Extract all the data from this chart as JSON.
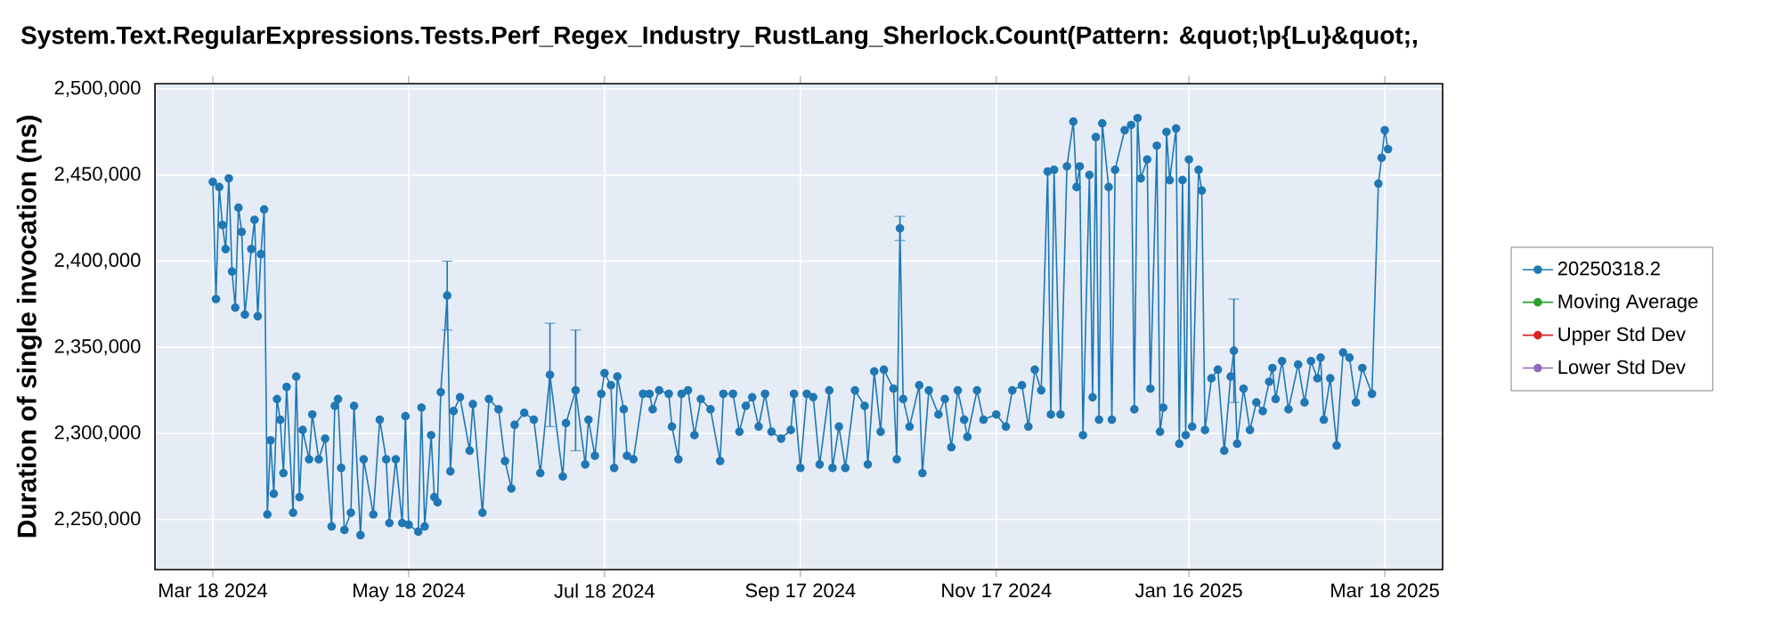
{
  "chart_data": {
    "type": "line",
    "title": "System.Text.RegularExpressions.Tests.Perf_Regex_Industry_RustLang_Sherlock.Count(Pattern: &quot;\\p{Lu}&quot;,",
    "ylabel": "Duration of single invocation (ns)",
    "xlim": [
      "2024-02-29",
      "2025-04-05"
    ],
    "ylim": [
      2221000,
      2503000
    ],
    "xticks": [
      {
        "value": "2024-03-18",
        "label": "Mar 18 2024"
      },
      {
        "value": "2024-05-18",
        "label": "May 18 2024"
      },
      {
        "value": "2024-07-18",
        "label": "Jul 18 2024"
      },
      {
        "value": "2024-09-17",
        "label": "Sep 17 2024"
      },
      {
        "value": "2024-11-17",
        "label": "Nov 17 2024"
      },
      {
        "value": "2025-01-16",
        "label": "Jan 16 2025"
      },
      {
        "value": "2025-03-18",
        "label": "Mar 18 2025"
      }
    ],
    "yticks": [
      {
        "value": 2250000,
        "label": "2,250,000"
      },
      {
        "value": 2300000,
        "label": "2,300,000"
      },
      {
        "value": 2350000,
        "label": "2,350,000"
      },
      {
        "value": 2400000,
        "label": "2,400,000"
      },
      {
        "value": 2450000,
        "label": "2,450,000"
      },
      {
        "value": 2500000,
        "label": "2,500,000"
      }
    ],
    "grid": true,
    "legend": "right",
    "marker": "circle",
    "series": [
      {
        "name": "20250318.2",
        "color": "#1f77b4",
        "x": [
          "2024-03-18",
          "2024-03-19",
          "2024-03-20",
          "2024-03-21",
          "2024-03-22",
          "2024-03-23",
          "2024-03-24",
          "2024-03-25",
          "2024-03-26",
          "2024-03-27",
          "2024-03-28",
          "2024-03-30",
          "2024-03-31",
          "2024-04-01",
          "2024-04-02",
          "2024-04-03",
          "2024-04-04",
          "2024-04-05",
          "2024-04-06",
          "2024-04-07",
          "2024-04-08",
          "2024-04-09",
          "2024-04-10",
          "2024-04-12",
          "2024-04-13",
          "2024-04-14",
          "2024-04-15",
          "2024-04-17",
          "2024-04-18",
          "2024-04-20",
          "2024-04-22",
          "2024-04-24",
          "2024-04-25",
          "2024-04-26",
          "2024-04-27",
          "2024-04-28",
          "2024-04-30",
          "2024-05-01",
          "2024-05-03",
          "2024-05-04",
          "2024-05-07",
          "2024-05-09",
          "2024-05-11",
          "2024-05-12",
          "2024-05-14",
          "2024-05-16",
          "2024-05-17",
          "2024-05-18",
          "2024-05-21",
          "2024-05-22",
          "2024-05-23",
          "2024-05-25",
          "2024-05-26",
          "2024-05-27",
          "2024-05-28",
          "2024-05-30",
          "2024-05-31",
          "2024-06-01",
          "2024-06-03",
          "2024-06-06",
          "2024-06-07",
          "2024-06-10",
          "2024-06-12",
          "2024-06-15",
          "2024-06-17",
          "2024-06-19",
          "2024-06-20",
          "2024-06-23",
          "2024-06-26",
          "2024-06-28",
          "2024-07-01",
          "2024-07-05",
          "2024-07-06",
          "2024-07-09",
          "2024-07-12",
          "2024-07-13",
          "2024-07-15",
          "2024-07-17",
          "2024-07-18",
          "2024-07-20",
          "2024-07-21",
          "2024-07-22",
          "2024-07-24",
          "2024-07-25",
          "2024-07-27",
          "2024-07-30",
          "2024-08-01",
          "2024-08-02",
          "2024-08-04",
          "2024-08-07",
          "2024-08-08",
          "2024-08-10",
          "2024-08-11",
          "2024-08-13",
          "2024-08-15",
          "2024-08-17",
          "2024-08-20",
          "2024-08-23",
          "2024-08-24",
          "2024-08-27",
          "2024-08-29",
          "2024-08-31",
          "2024-09-02",
          "2024-09-04",
          "2024-09-06",
          "2024-09-08",
          "2024-09-11",
          "2024-09-14",
          "2024-09-15",
          "2024-09-17",
          "2024-09-19",
          "2024-09-21",
          "2024-09-23",
          "2024-09-26",
          "2024-09-27",
          "2024-09-29",
          "2024-10-01",
          "2024-10-04",
          "2024-10-07",
          "2024-10-08",
          "2024-10-10",
          "2024-10-12",
          "2024-10-13",
          "2024-10-16",
          "2024-10-17",
          "2024-10-18",
          "2024-10-19",
          "2024-10-21",
          "2024-10-24",
          "2024-10-25",
          "2024-10-27",
          "2024-10-30",
          "2024-11-01",
          "2024-11-03",
          "2024-11-05",
          "2024-11-07",
          "2024-11-08",
          "2024-11-11",
          "2024-11-13",
          "2024-11-17",
          "2024-11-20",
          "2024-11-22",
          "2024-11-25",
          "2024-11-27",
          "2024-11-29",
          "2024-12-01",
          "2024-12-03",
          "2024-12-04",
          "2024-12-05",
          "2024-12-07",
          "2024-12-09",
          "2024-12-11",
          "2024-12-12",
          "2024-12-13",
          "2024-12-14",
          "2024-12-16",
          "2024-12-17",
          "2024-12-18",
          "2024-12-19",
          "2024-12-20",
          "2024-12-22",
          "2024-12-23",
          "2024-12-24",
          "2024-12-27",
          "2024-12-29",
          "2024-12-30",
          "2024-12-31",
          "2025-01-01",
          "2025-01-03",
          "2025-01-04",
          "2025-01-06",
          "2025-01-07",
          "2025-01-08",
          "2025-01-09",
          "2025-01-10",
          "2025-01-12",
          "2025-01-13",
          "2025-01-14",
          "2025-01-15",
          "2025-01-16",
          "2025-01-17",
          "2025-01-19",
          "2025-01-20",
          "2025-01-21",
          "2025-01-23",
          "2025-01-25",
          "2025-01-27",
          "2025-01-29",
          "2025-01-30",
          "2025-01-31",
          "2025-02-02",
          "2025-02-04",
          "2025-02-06",
          "2025-02-08",
          "2025-02-10",
          "2025-02-11",
          "2025-02-12",
          "2025-02-14",
          "2025-02-16",
          "2025-02-19",
          "2025-02-21",
          "2025-02-23",
          "2025-02-25",
          "2025-02-26",
          "2025-02-27",
          "2025-03-01",
          "2025-03-03",
          "2025-03-05",
          "2025-03-07",
          "2025-03-09",
          "2025-03-11",
          "2025-03-14",
          "2025-03-16",
          "2025-03-17",
          "2025-03-18",
          "2025-03-19"
        ],
        "values": [
          2446000,
          2378000,
          2443000,
          2421000,
          2407000,
          2448000,
          2394000,
          2373000,
          2431000,
          2417000,
          2369000,
          2407000,
          2424000,
          2368000,
          2404000,
          2430000,
          2253000,
          2296000,
          2265000,
          2320000,
          2308000,
          2277000,
          2327000,
          2254000,
          2333000,
          2263000,
          2302000,
          2285000,
          2311000,
          2285000,
          2297000,
          2246000,
          2316000,
          2320000,
          2280000,
          2244000,
          2254000,
          2316000,
          2241000,
          2285000,
          2253000,
          2308000,
          2285000,
          2248000,
          2285000,
          2248000,
          2310000,
          2247000,
          2243000,
          2315000,
          2246000,
          2299000,
          2263000,
          2260000,
          2324000,
          2380000,
          2278000,
          2313000,
          2321000,
          2290000,
          2317000,
          2254000,
          2320000,
          2314000,
          2284000,
          2268000,
          2305000,
          2312000,
          2308000,
          2277000,
          2334000,
          2275000,
          2306000,
          2325000,
          2282000,
          2308000,
          2287000,
          2323000,
          2335000,
          2328000,
          2280000,
          2333000,
          2314000,
          2287000,
          2285000,
          2323000,
          2323000,
          2314000,
          2325000,
          2323000,
          2304000,
          2285000,
          2323000,
          2325000,
          2299000,
          2320000,
          2314000,
          2284000,
          2323000,
          2323000,
          2301000,
          2316000,
          2321000,
          2304000,
          2323000,
          2301000,
          2297000,
          2302000,
          2323000,
          2280000,
          2323000,
          2321000,
          2282000,
          2325000,
          2280000,
          2304000,
          2280000,
          2325000,
          2316000,
          2282000,
          2336000,
          2301000,
          2337000,
          2326000,
          2285000,
          2419000,
          2320000,
          2304000,
          2328000,
          2277000,
          2325000,
          2311000,
          2320000,
          2292000,
          2325000,
          2308000,
          2298000,
          2325000,
          2308000,
          2311000,
          2304000,
          2325000,
          2328000,
          2304000,
          2337000,
          2325000,
          2452000,
          2311000,
          2453000,
          2311000,
          2455000,
          2481000,
          2443000,
          2455000,
          2299000,
          2450000,
          2321000,
          2472000,
          2308000,
          2480000,
          2443000,
          2308000,
          2453000,
          2476000,
          2479000,
          2314000,
          2483000,
          2448000,
          2459000,
          2326000,
          2467000,
          2301000,
          2315000,
          2475000,
          2447000,
          2477000,
          2294000,
          2447000,
          2299000,
          2459000,
          2304000,
          2453000,
          2441000,
          2302000,
          2332000,
          2337000,
          2290000,
          2333000,
          2348000,
          2294000,
          2326000,
          2302000,
          2318000,
          2313000,
          2330000,
          2338000,
          2320000,
          2342000,
          2314000,
          2340000,
          2318000,
          2342000,
          2332000,
          2344000,
          2308000,
          2332000,
          2293000,
          2347000,
          2344000,
          2318000,
          2338000,
          2323000,
          2445000,
          2460000,
          2476000,
          2465000
        ],
        "errors": [
          null,
          null,
          null,
          null,
          null,
          null,
          null,
          null,
          null,
          null,
          null,
          null,
          null,
          null,
          null,
          null,
          null,
          null,
          null,
          null,
          null,
          null,
          null,
          null,
          null,
          null,
          null,
          null,
          null,
          null,
          null,
          null,
          null,
          null,
          null,
          null,
          null,
          null,
          null,
          null,
          null,
          null,
          null,
          null,
          null,
          null,
          null,
          null,
          null,
          null,
          null,
          null,
          null,
          null,
          null,
          20000,
          null,
          null,
          null,
          null,
          null,
          null,
          null,
          null,
          null,
          null,
          null,
          null,
          null,
          null,
          30000,
          null,
          null,
          35000,
          null,
          null,
          null,
          null,
          null,
          null,
          null,
          null,
          null,
          null,
          null,
          null,
          null,
          null,
          null,
          null,
          null,
          null,
          null,
          null,
          null,
          null,
          null,
          null,
          null,
          null,
          null,
          null,
          null,
          null,
          null,
          null,
          null,
          null,
          null,
          null,
          null,
          null,
          null,
          null,
          null,
          null,
          null,
          null,
          null,
          null,
          null,
          null,
          null,
          null,
          null,
          7000,
          null,
          null,
          null,
          null,
          null,
          null,
          null,
          null,
          null,
          null,
          null,
          null,
          null,
          null,
          null,
          null,
          null,
          null,
          null,
          null,
          null,
          null,
          null,
          null,
          null,
          null,
          null,
          null,
          null,
          null,
          null,
          null,
          null,
          null,
          null,
          null,
          null,
          null,
          null,
          null,
          null,
          null,
          null,
          null,
          null,
          null,
          null,
          null,
          null,
          null,
          null,
          null,
          null,
          null,
          null,
          null,
          null,
          null,
          null,
          null,
          null,
          null,
          30000,
          null,
          null,
          null,
          null,
          null,
          null,
          null,
          null,
          null,
          null,
          null,
          null,
          null,
          null,
          null,
          null,
          null,
          null,
          null,
          null,
          null,
          null,
          null,
          null,
          null,
          null,
          null
        ]
      },
      {
        "name": "Moving Average",
        "color": "#2ca02c"
      },
      {
        "name": "Upper Std Dev",
        "color": "#d62728"
      },
      {
        "name": "Lower Std Dev",
        "color": "#9467bd"
      }
    ]
  }
}
